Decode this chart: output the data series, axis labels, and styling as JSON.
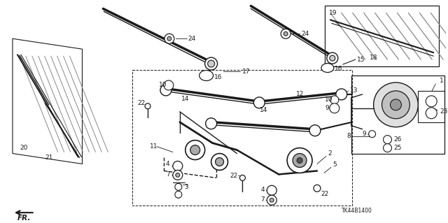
{
  "bg_color": "#ffffff",
  "fig_width": 6.4,
  "fig_height": 3.19,
  "dpi": 100,
  "line_color": "#1a1a1a",
  "tk_label": "TK44B1400",
  "fr_text": "FR."
}
